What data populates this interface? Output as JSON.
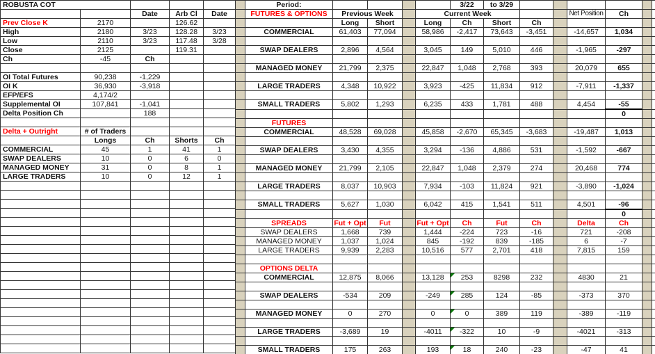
{
  "colors": {
    "red": "#ff0000",
    "tan": "#d9d2bd",
    "green": "#0b7a0b",
    "grid": "#333333",
    "ink": "#151515"
  },
  "left_table": {
    "title": "ROBUSTA COT",
    "colclass": [
      "lab b",
      "",
      "",
      "",
      ""
    ],
    "rows": [
      [
        {
          "t": "ROBUSTA COT",
          "s": 2
        },
        "",
        "",
        ""
      ],
      [
        "",
        "",
        {
          "t": "Date",
          "c": "b"
        },
        {
          "t": "Arb Cl",
          "c": "b"
        },
        {
          "t": "Date",
          "c": "b"
        }
      ],
      [
        {
          "t": "Prev Close K",
          "c": "red lab"
        },
        "2170",
        "",
        "126.62",
        ""
      ],
      [
        "High",
        "2180",
        "3/23",
        "128.28",
        "3/23"
      ],
      [
        "Low",
        "2110",
        "3/23",
        "117.48",
        "3/28"
      ],
      [
        "Close",
        "2125",
        "",
        "119.31",
        ""
      ],
      [
        "Ch",
        "-45",
        {
          "t": "Ch",
          "c": "b"
        },
        "",
        ""
      ],
      null,
      [
        "OI Total Futures",
        "90,238",
        "-1,229",
        "",
        ""
      ],
      [
        "OI K",
        "36,930",
        "-3,918",
        "",
        ""
      ],
      [
        "EFP/EFS",
        "4,174/2",
        "",
        "",
        ""
      ],
      [
        "Supplemental OI",
        "107,841",
        "-1,041",
        "",
        ""
      ],
      [
        "Delta Position Ch",
        "",
        "188",
        "",
        ""
      ],
      null,
      [
        {
          "t": "Delta + Outright",
          "c": "red lab"
        },
        {
          "t": "# of Traders",
          "c": "b"
        },
        "",
        "",
        ""
      ],
      [
        "",
        {
          "t": "Longs",
          "c": "b"
        },
        {
          "t": "Ch",
          "c": "b"
        },
        {
          "t": "Shorts",
          "c": "b"
        },
        {
          "t": "Ch",
          "c": "b"
        }
      ],
      [
        "COMMERCIAL",
        "45",
        "1",
        "41",
        "1"
      ],
      [
        "SWAP DEALERS",
        "10",
        "0",
        "6",
        "0"
      ],
      [
        "MANAGED MONEY",
        "31",
        "0",
        "8",
        "1"
      ],
      [
        "LARGE TRADERS",
        "10",
        "0",
        "12",
        "1"
      ],
      null,
      null,
      null,
      null,
      null,
      null,
      null,
      null,
      null,
      null,
      null,
      null,
      null,
      null,
      null,
      null,
      null,
      null,
      null
    ]
  },
  "right_table": {
    "period_label": "Period:",
    "period_from": "3/22",
    "period_to": "to 3/29",
    "colclass": [
      "sep",
      "",
      "",
      "",
      "sep",
      "",
      "",
      "",
      "",
      "sep",
      "",
      "",
      "sep",
      ""
    ],
    "rows": [
      [
        "",
        {
          "t": "Period:",
          "c": "b"
        },
        "",
        "",
        "",
        "",
        {
          "t": "3/22",
          "c": "b"
        },
        {
          "t": "to 3/29",
          "c": "b"
        },
        "",
        "",
        "",
        "",
        "",
        ""
      ],
      [
        "",
        {
          "t": "FUTURES & OPTIONS",
          "c": "red"
        },
        {
          "t": "Previous Week",
          "c": "b",
          "s": 2
        },
        "",
        {
          "t": "Current Week",
          "c": "b",
          "s": 3
        },
        "",
        "",
        {
          "t": "Net Position",
          "c": "tight"
        },
        {
          "t": "Ch",
          "c": "b"
        },
        "",
        ""
      ],
      [
        "",
        "",
        {
          "t": "Long",
          "c": "b"
        },
        {
          "t": "Short",
          "c": "b"
        },
        "",
        {
          "t": "Long",
          "c": "b"
        },
        {
          "t": "Ch",
          "c": "b"
        },
        {
          "t": "Short",
          "c": "b"
        },
        {
          "t": "Ch",
          "c": "b"
        },
        "",
        "",
        "",
        "",
        ""
      ],
      [
        "",
        {
          "t": "COMMERCIAL",
          "c": "b"
        },
        "61,403",
        "77,094",
        "",
        "58,986",
        "-2,417",
        "73,643",
        "-3,451",
        "",
        "-14,657",
        {
          "t": "1,034",
          "c": "b"
        },
        "",
        ""
      ],
      null,
      [
        "",
        {
          "t": "SWAP DEALERS",
          "c": "b"
        },
        "2,896",
        "4,564",
        "",
        "3,045",
        "149",
        "5,010",
        "446",
        "",
        "-1,965",
        {
          "t": "-297",
          "c": "b"
        },
        "",
        ""
      ],
      null,
      [
        "",
        {
          "t": "MANAGED MONEY",
          "c": "b"
        },
        "21,799",
        "2,375",
        "",
        "22,847",
        "1,048",
        "2,768",
        "393",
        "",
        "20,079",
        {
          "t": "655",
          "c": "b"
        },
        "",
        ""
      ],
      null,
      [
        "",
        {
          "t": "LARGE TRADERS",
          "c": "b"
        },
        "4,348",
        "10,922",
        "",
        "3,923",
        "-425",
        "11,834",
        "912",
        "",
        "-7,911",
        {
          "t": "-1,337",
          "c": "b"
        },
        "",
        ""
      ],
      null,
      [
        "",
        {
          "t": "SMALL TRADERS",
          "c": "b"
        },
        "5,802",
        "1,293",
        "",
        "6,235",
        "433",
        "1,781",
        "488",
        "",
        "4,454",
        {
          "t": "-55",
          "c": "b ul"
        },
        "",
        ""
      ],
      [
        "",
        "",
        "",
        "",
        "",
        "",
        "",
        "",
        "",
        "",
        "",
        {
          "t": "0",
          "c": "b"
        },
        "",
        ""
      ],
      [
        "",
        {
          "t": "FUTURES",
          "c": "red"
        },
        "",
        "",
        "",
        "",
        "",
        "",
        "",
        "",
        "",
        "",
        "",
        ""
      ],
      [
        "",
        {
          "t": "COMMERCIAL",
          "c": "b"
        },
        "48,528",
        "69,028",
        "",
        "45,858",
        "-2,670",
        "65,345",
        "-3,683",
        "",
        "-19,487",
        {
          "t": "1,013",
          "c": "b"
        },
        "",
        ""
      ],
      null,
      [
        "",
        {
          "t": "SWAP DEALERS",
          "c": "b"
        },
        "3,430",
        "4,355",
        "",
        "3,294",
        "-136",
        "4,886",
        "531",
        "",
        "-1,592",
        {
          "t": "-667",
          "c": "b"
        },
        "",
        ""
      ],
      null,
      [
        "",
        {
          "t": "MANAGED MONEY",
          "c": "b"
        },
        "21,799",
        "2,105",
        "",
        "22,847",
        "1,048",
        "2,379",
        "274",
        "",
        "20,468",
        {
          "t": "774",
          "c": "b"
        },
        "",
        ""
      ],
      null,
      [
        "",
        {
          "t": "LARGE TRADERS",
          "c": "b"
        },
        "8,037",
        "10,903",
        "",
        "7,934",
        "-103",
        "11,824",
        "921",
        "",
        "-3,890",
        {
          "t": "-1,024",
          "c": "b"
        },
        "",
        ""
      ],
      null,
      [
        "",
        {
          "t": "SMALL TRADERS",
          "c": "b"
        },
        "5,627",
        "1,030",
        "",
        "6,042",
        "415",
        "1,541",
        "511",
        "",
        "4,501",
        {
          "t": "-96",
          "c": "b ul"
        },
        "",
        ""
      ],
      [
        "",
        "",
        "",
        "",
        "",
        "",
        "",
        "",
        "",
        "",
        "",
        {
          "t": "0",
          "c": "b"
        },
        "",
        ""
      ],
      [
        "",
        {
          "t": "SPREADS",
          "c": "red"
        },
        {
          "t": "Fut + Opt",
          "c": "red"
        },
        {
          "t": "Fut",
          "c": "red"
        },
        "",
        {
          "t": "Fut + Opt",
          "c": "red"
        },
        {
          "t": "Ch",
          "c": "red"
        },
        {
          "t": "Fut",
          "c": "red"
        },
        {
          "t": "Ch",
          "c": "red"
        },
        "",
        {
          "t": "Delta",
          "c": "red"
        },
        {
          "t": "Ch",
          "c": "red"
        },
        "",
        ""
      ],
      [
        "",
        "SWAP DEALERS",
        "1,668",
        "739",
        "",
        "1,444",
        "-224",
        "723",
        "-16",
        "",
        "721",
        "-208",
        "",
        ""
      ],
      [
        "",
        "MANAGED MONEY",
        "1,037",
        "1,024",
        "",
        "845",
        "-192",
        "839",
        "-185",
        "",
        "6",
        "-7",
        "",
        ""
      ],
      [
        "",
        "LARGE TRADERS",
        "9,939",
        "2,283",
        "",
        "10,516",
        "577",
        "2,701",
        "418",
        "",
        "7,815",
        "159",
        "",
        ""
      ],
      null,
      [
        "",
        {
          "t": "OPTIONS DELTA",
          "c": "red"
        },
        "",
        "",
        "",
        "",
        "",
        "",
        "",
        "",
        "",
        "",
        "",
        ""
      ],
      [
        "",
        {
          "t": "COMMERCIAL",
          "c": "b"
        },
        "12,875",
        "8,066",
        "",
        "13,128",
        {
          "t": "253",
          "c": "tri"
        },
        "8298",
        "232",
        "",
        "4830",
        "21",
        "",
        ""
      ],
      null,
      [
        "",
        {
          "t": "SWAP DEALERS",
          "c": "b"
        },
        "-534",
        "209",
        "",
        "-249",
        {
          "t": "285",
          "c": "tri"
        },
        "124",
        "-85",
        "",
        "-373",
        "370",
        "",
        ""
      ],
      null,
      [
        "",
        {
          "t": "MANAGED MONEY",
          "c": "b"
        },
        "0",
        "270",
        "",
        "0",
        {
          "t": "0",
          "c": "tri"
        },
        "389",
        "119",
        "",
        "-389",
        "-119",
        "",
        ""
      ],
      null,
      [
        "",
        {
          "t": "LARGE TRADERS",
          "c": "b"
        },
        "-3,689",
        "19",
        "",
        "-4011",
        {
          "t": "-322",
          "c": "tri"
        },
        "10",
        "-9",
        "",
        "-4021",
        "-313",
        "",
        ""
      ],
      null,
      [
        "",
        {
          "t": "SMALL TRADERS",
          "c": "b"
        },
        "175",
        "263",
        "",
        "193",
        {
          "t": "18",
          "c": "tri"
        },
        "240",
        "-23",
        "",
        "-47",
        "41",
        "",
        ""
      ]
    ]
  }
}
